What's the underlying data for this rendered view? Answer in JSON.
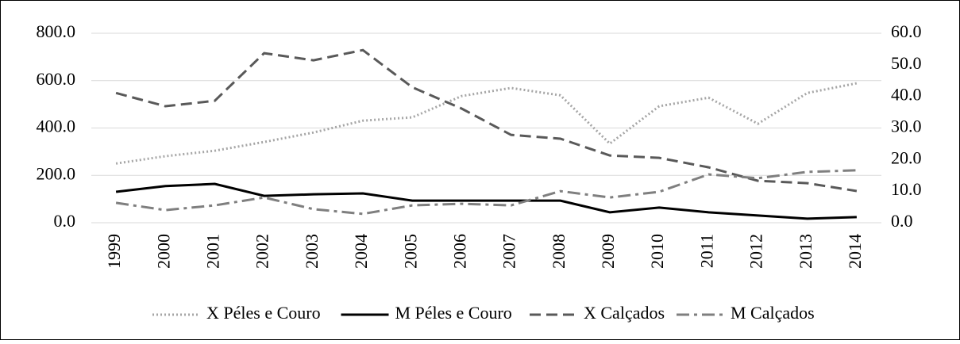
{
  "chart_data": {
    "type": "line",
    "categories": [
      "1999",
      "2000",
      "2001",
      "2002",
      "2003",
      "2004",
      "2005",
      "2006",
      "2007",
      "2008",
      "2009",
      "2010",
      "2011",
      "2012",
      "2013",
      "2014"
    ],
    "ylim": [
      0,
      800
    ],
    "yticks": [
      {
        "value": 0,
        "label": "0.0"
      },
      {
        "value": 200,
        "label": "200.0"
      },
      {
        "value": 400,
        "label": "400.0"
      },
      {
        "value": 600,
        "label": "600.0"
      },
      {
        "value": 800,
        "label": "800.0"
      }
    ],
    "y2lim": [
      0,
      60
    ],
    "y2ticks": [
      {
        "value": 0,
        "label": "0.0"
      },
      {
        "value": 10,
        "label": "10.0"
      },
      {
        "value": 20,
        "label": "20.0"
      },
      {
        "value": 30,
        "label": "30.0"
      },
      {
        "value": 40,
        "label": "40.0"
      },
      {
        "value": 50,
        "label": "50.0"
      },
      {
        "value": 60,
        "label": "60.0"
      }
    ],
    "grid": true,
    "legend": "bottom",
    "series": [
      {
        "name": "X Péles e Couro",
        "color": "#a6a6a6",
        "style": "dotted",
        "values": [
          250,
          281,
          304,
          341,
          381,
          431,
          445,
          535,
          569,
          538,
          334,
          492,
          528,
          418,
          548,
          589
        ]
      },
      {
        "name": "M Péles e Couro",
        "color": "#000000",
        "style": "solid",
        "axis": "y2",
        "values": [
          9.8,
          11.6,
          12.3,
          8.5,
          9.0,
          9.3,
          7.0,
          7.0,
          7.0,
          7.0,
          3.3,
          4.8,
          3.3,
          2.3,
          1.3,
          1.8
        ]
      },
      {
        "name": "X Calçados",
        "color": "#595959",
        "style": "dashed",
        "values": [
          548,
          492,
          515,
          716,
          686,
          729,
          572,
          482,
          371,
          355,
          284,
          274,
          234,
          177,
          167,
          134
        ]
      },
      {
        "name": "M Calçados",
        "color": "#7f7f7f",
        "style": "dashdot",
        "axis": "y2",
        "values": [
          6.3,
          4.0,
          5.5,
          8.0,
          4.3,
          2.8,
          5.5,
          6.0,
          5.5,
          10.0,
          8.0,
          9.8,
          15.3,
          14.1,
          16.1,
          16.6
        ]
      }
    ]
  }
}
